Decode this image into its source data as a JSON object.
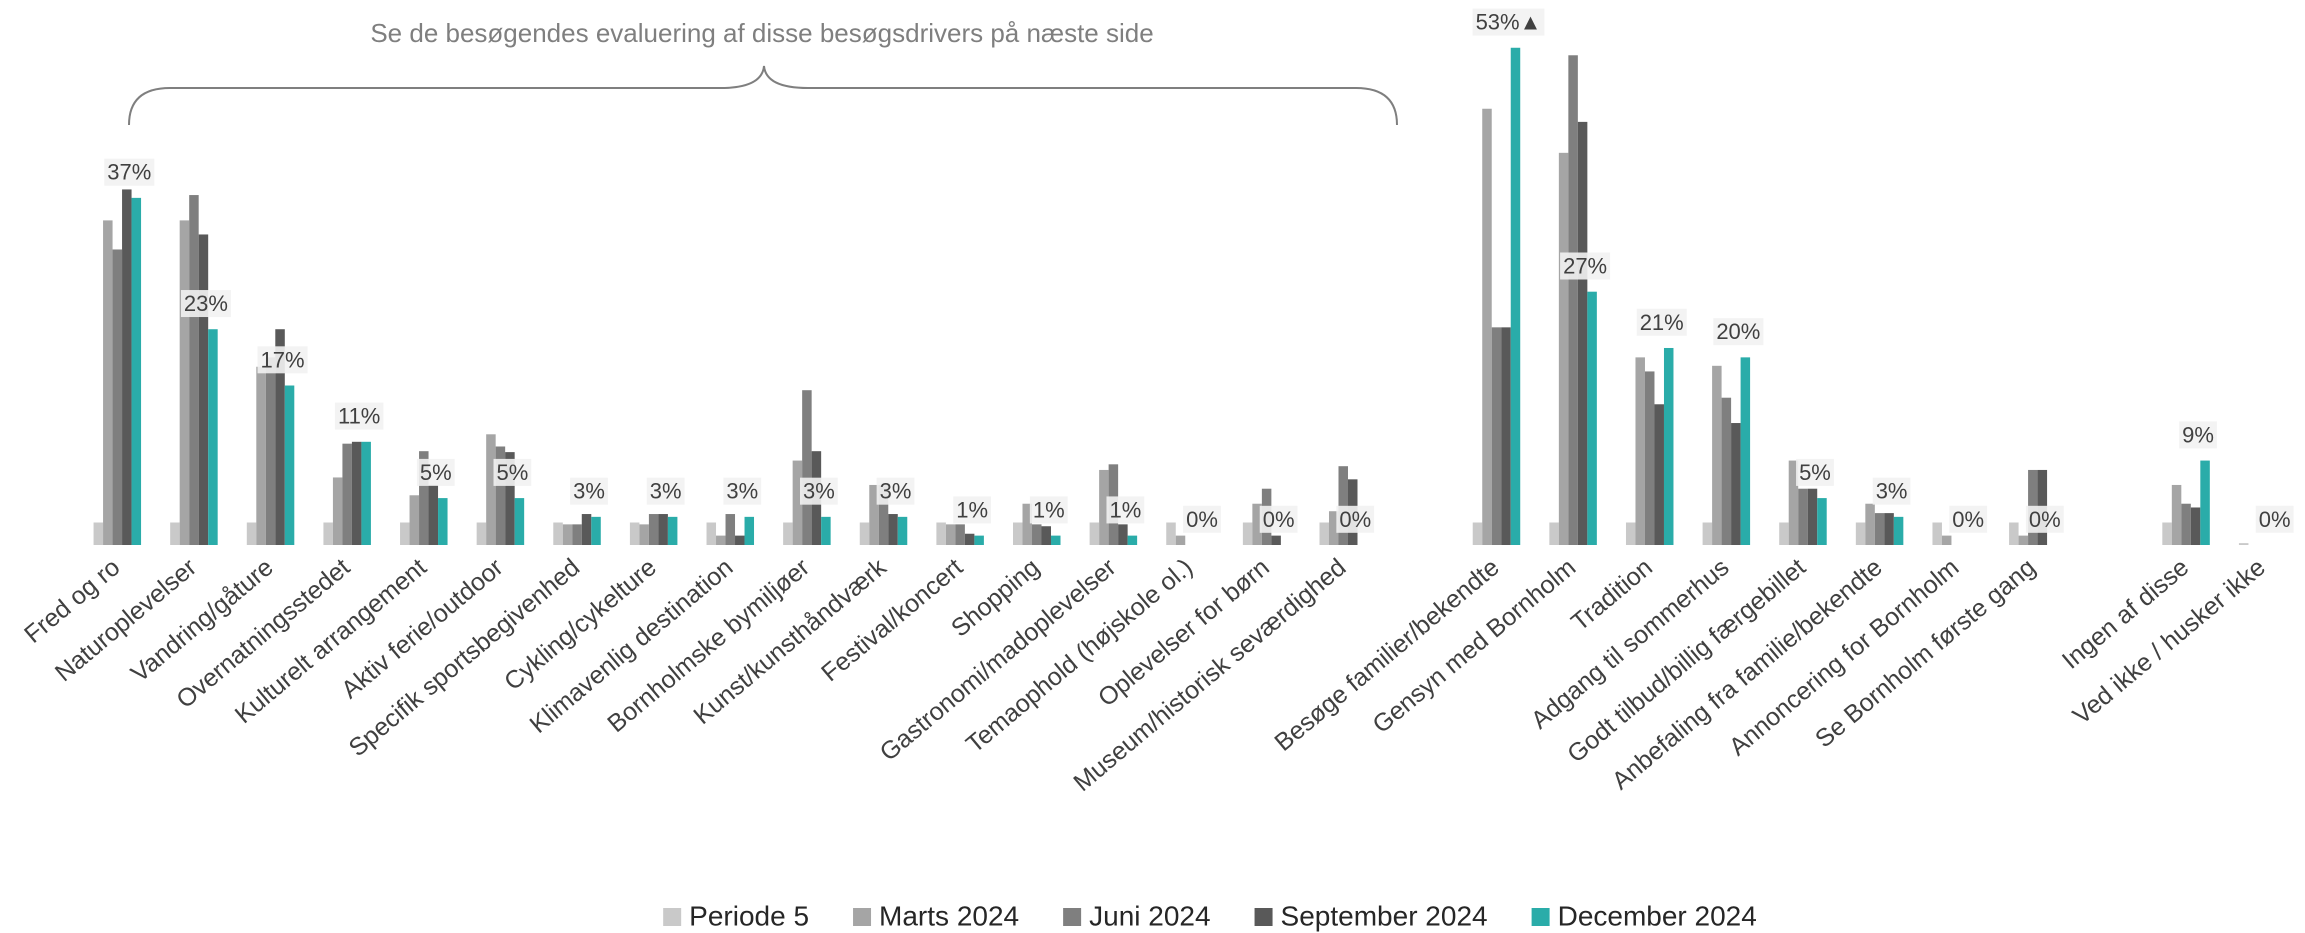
{
  "chart_data": {
    "type": "bar",
    "annotation": "Se de besøgendes evaluering af disse besøgsdrivers på næste side",
    "categories": [
      "Fred og ro",
      "Naturoplevelser",
      "Vandring/gåture",
      "Overnatningsstedet",
      "Kulturelt arrangement",
      "Aktiv ferie/outdoor",
      "Specifik sportsbegivenhed",
      "Cykling/cykelture",
      "Klimavenlig destination",
      "Bornholmske bymiljøer",
      "Kunst/kunsthåndværk",
      "Festival/koncert",
      "Shopping",
      "Gastronomi/madoplevelser",
      "Temaophold (højskole ol.)",
      "Oplevelser for børn",
      "Museum/historisk seværdighed",
      null,
      "Besøge familier/bekendte",
      "Gensyn med Bornholm",
      "Tradition",
      "Adgang til sommerhus",
      "Godt tilbud/billig færgebillet",
      "Anbefaling fra familie/bekendte",
      "Annoncering for Bornholm",
      "Se Bornholm første gang",
      null,
      "Ingen af disse",
      "Ved ikke / husker ikke"
    ],
    "series": [
      {
        "name": "Periode 5",
        "color": "#c9c9c9",
        "values": [
          2.4,
          2.4,
          2.4,
          2.4,
          2.4,
          2.4,
          2.4,
          2.4,
          2.4,
          2.4,
          2.4,
          2.4,
          2.4,
          2.4,
          2.4,
          2.4,
          2.4,
          null,
          2.4,
          2.4,
          2.4,
          2.4,
          2.4,
          2.4,
          2.4,
          2.4,
          null,
          2.4,
          0.2
        ]
      },
      {
        "name": "Marts 2024",
        "color": "#a5a5a5",
        "values": [
          34.6,
          34.6,
          19,
          7.2,
          5.3,
          11.8,
          2.2,
          2.2,
          1,
          9,
          6.4,
          2.2,
          4.4,
          8,
          1,
          4.4,
          3.6,
          null,
          46.5,
          41.8,
          20,
          19.1,
          9,
          4.4,
          1,
          1,
          null,
          6.4,
          0
        ]
      },
      {
        "name": "Juni 2024",
        "color": "#7f7f7f",
        "values": [
          31.5,
          37.3,
          20,
          10.8,
          10,
          10.5,
          2.2,
          3.3,
          3.3,
          16.5,
          6.4,
          2.2,
          2.2,
          8.6,
          0,
          6,
          8.4,
          null,
          23.2,
          52.2,
          18.5,
          15.7,
          6,
          3.4,
          0,
          8,
          null,
          4.4,
          0
        ]
      },
      {
        "name": "September 2024",
        "color": "#595959",
        "values": [
          37.9,
          33.1,
          23,
          11,
          6.4,
          9.9,
          3.3,
          3.3,
          1,
          10,
          3.3,
          1.2,
          2,
          2.2,
          0,
          1,
          7,
          null,
          23.2,
          45.1,
          15,
          13,
          6,
          3.4,
          0,
          8,
          null,
          4,
          0
        ]
      },
      {
        "name": "December 2024",
        "color": "#2aaca9",
        "values": [
          37,
          23,
          17,
          11,
          5,
          5,
          3,
          3,
          3,
          3,
          3,
          1,
          1,
          1,
          0,
          0,
          0,
          null,
          53,
          27,
          21,
          20,
          5,
          3,
          0,
          0,
          null,
          9,
          0
        ],
        "value_labels": [
          "37%",
          "23%",
          "17%",
          "11%",
          "5%",
          "5%",
          "3%",
          "3%",
          "3%",
          "3%",
          "3%",
          "1%",
          "1%",
          "1%",
          "0%",
          "0%",
          "0%",
          null,
          "53%▲",
          "27%",
          "21%",
          "20%",
          "5%",
          "3%",
          "0%",
          "0%",
          null,
          "9%",
          "0%"
        ]
      }
    ],
    "ylim": [
      0,
      55
    ],
    "legend": "bottom"
  }
}
